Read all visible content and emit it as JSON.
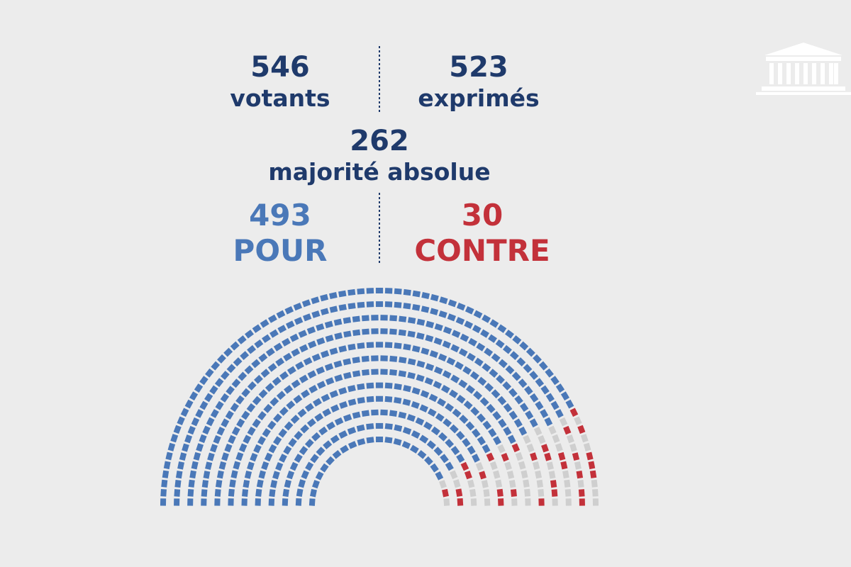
{
  "stats": {
    "votants": {
      "count": 546,
      "label": "votants"
    },
    "exprimes": {
      "count": 523,
      "label": "exprimés"
    },
    "majorite": {
      "count": 262,
      "label": "majorité absolue"
    },
    "pour": {
      "count": 493,
      "label": "POUR"
    },
    "contre": {
      "count": 30,
      "label": "CONTRE"
    }
  }
}
